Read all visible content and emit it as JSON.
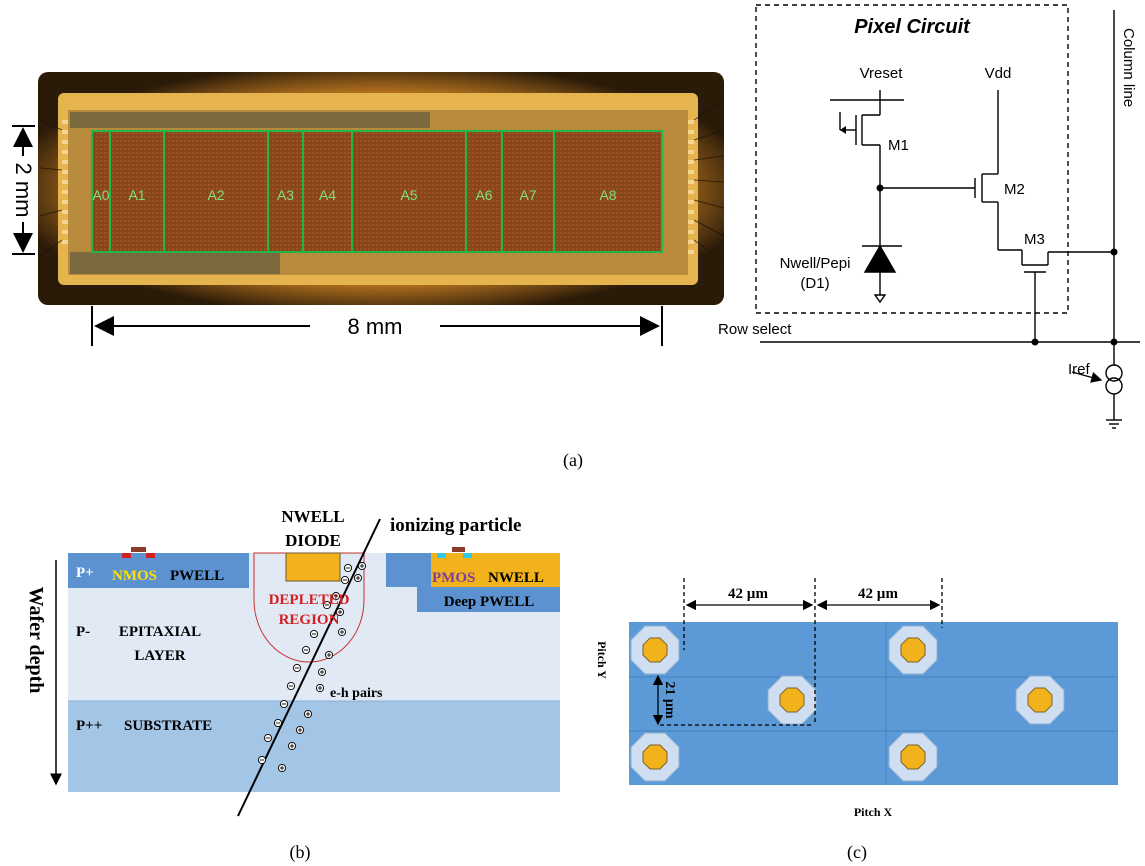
{
  "panel_labels": {
    "a": "(a)",
    "b": "(b)",
    "c": "(c)"
  },
  "chip": {
    "areas": [
      "A0",
      "A1",
      "A2",
      "A3",
      "A4",
      "A5",
      "A6",
      "A7",
      "A8"
    ],
    "height_label": "2 mm",
    "width_label": "8 mm"
  },
  "circuit": {
    "title": "Pixel Circuit",
    "vreset": "Vreset",
    "vdd": "Vdd",
    "m1": "M1",
    "m2": "M2",
    "m3": "M3",
    "diode_line1": "Nwell/Pepi",
    "diode_line2": "(D1)",
    "row_select": "Row select",
    "column_line": "Column line",
    "iref": "Iref"
  },
  "cross_section": {
    "wafer_depth": "Wafer depth",
    "nwell_diode_1": "NWELL",
    "nwell_diode_2": "DIODE",
    "ionizing": "ionizing particle",
    "p_plus": "P+",
    "nmos": "NMOS",
    "pwell": "PWELL",
    "pmos": "PMOS",
    "nwell": "NWELL",
    "deep_pwell": "Deep PWELL",
    "depleted_1": "DEPLETED",
    "depleted_2": "REGION",
    "p_minus": "P-",
    "epi_1": "EPITAXIAL",
    "epi_2": "LAYER",
    "eh_pairs": "e-h pairs",
    "p_plus_plus": "P++",
    "substrate": "SUBSTRATE"
  },
  "pitch": {
    "dim_x1": "42 µm",
    "dim_x2": "42 µm",
    "dim_y": "21 µm",
    "pitch_y": "Pitch Y",
    "pitch_x": "Pitch X"
  },
  "colors": {
    "chip_bg": "#3d2408",
    "chip_glow": "#c98a2a",
    "die": "#8e4a1c",
    "area_outline": "#1fb64a",
    "area_text": "#7fe07f",
    "gold": "#f2b21b",
    "epi": "#e1e9f5",
    "substrate": "#a3c5e6",
    "well_blue": "#5b92cf",
    "pixel_bg": "#5b9ad6",
    "pixel_ring": "#cfdff1",
    "depleted_red": "#d42020",
    "nmos_yellow": "#ffe000",
    "pmos_purple": "#7a3fa0"
  }
}
